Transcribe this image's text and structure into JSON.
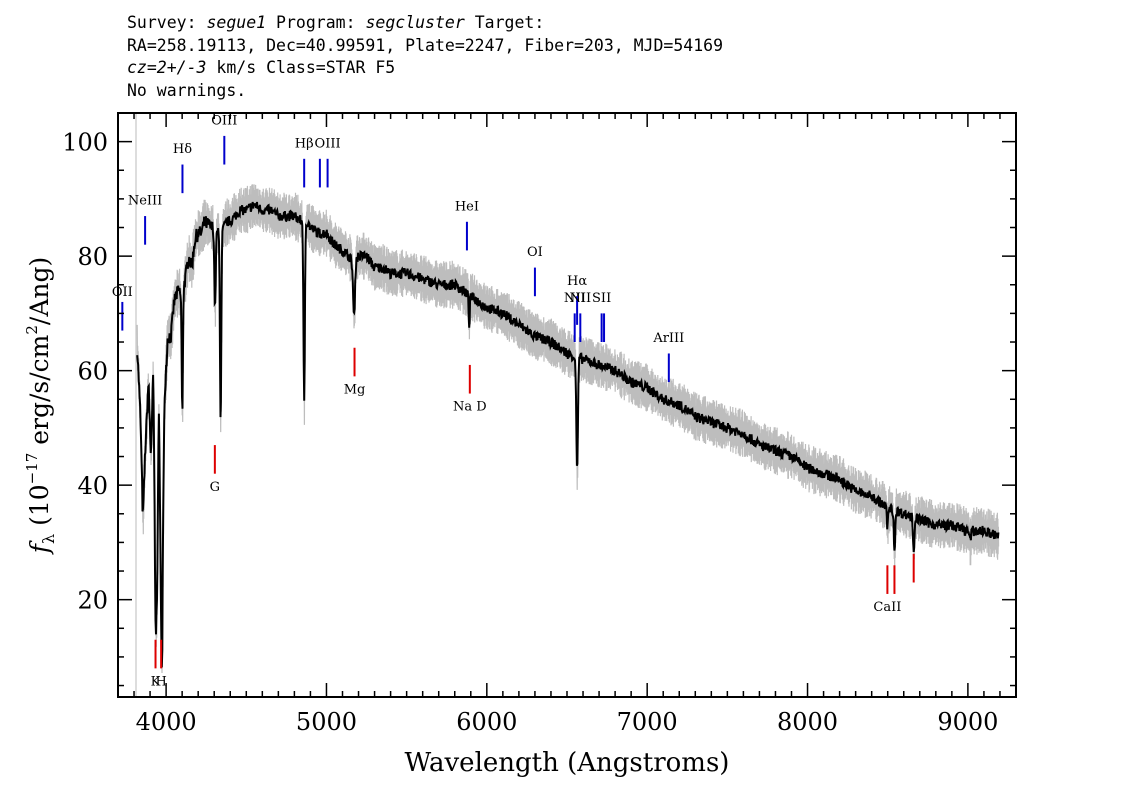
{
  "header": {
    "survey_label": "Survey:",
    "survey": "segue1",
    "program_label": "Program:",
    "program": "segcluster",
    "target_label": "Target:",
    "line2": "RA=258.19113, Dec=40.99591, Plate=2247, Fiber=203, MJD=54169",
    "cz": "cz=2+/-3",
    "cz_rest": " km/s Class=STAR F5",
    "warnings": "No warnings."
  },
  "chart_data": {
    "type": "line",
    "title": "",
    "xlabel": "Wavelength (Angstroms)",
    "ylabel": "f_λ (10^-17 erg/s/cm^2/Ang)",
    "xlim": [
      3700,
      9300
    ],
    "ylim": [
      3,
      105
    ],
    "xticks": [
      4000,
      5000,
      6000,
      7000,
      8000,
      9000
    ],
    "yticks": [
      20,
      40,
      60,
      80,
      100
    ],
    "grid": false,
    "colors": {
      "flux": "#000000",
      "error_band": "#bdbdbd",
      "emission": "#0000cc",
      "absorption": "#dd0000"
    },
    "continuum": [
      [
        3820,
        64
      ],
      [
        3840,
        52
      ],
      [
        3855,
        34
      ],
      [
        3870,
        46
      ],
      [
        3890,
        58
      ],
      [
        3905,
        45
      ],
      [
        3920,
        60
      ],
      [
        3935,
        30
      ],
      [
        3945,
        28
      ],
      [
        3955,
        55
      ],
      [
        3965,
        48
      ],
      [
        3975,
        20
      ],
      [
        3990,
        55
      ],
      [
        4010,
        66
      ],
      [
        4030,
        66
      ],
      [
        4050,
        72
      ],
      [
        4060,
        73
      ],
      [
        4080,
        74
      ],
      [
        4095,
        73
      ],
      [
        4120,
        76
      ],
      [
        4140,
        80
      ],
      [
        4160,
        78
      ],
      [
        4180,
        83
      ],
      [
        4200,
        84
      ],
      [
        4220,
        84
      ],
      [
        4240,
        86
      ],
      [
        4280,
        85
      ],
      [
        4300,
        85
      ],
      [
        4320,
        84
      ],
      [
        4360,
        85
      ],
      [
        4380,
        86
      ],
      [
        4400,
        86
      ],
      [
        4430,
        87
      ],
      [
        4460,
        88
      ],
      [
        4500,
        88
      ],
      [
        4550,
        89
      ],
      [
        4600,
        88
      ],
      [
        4650,
        88
      ],
      [
        4700,
        87
      ],
      [
        4750,
        87
      ],
      [
        4800,
        87
      ],
      [
        4850,
        86
      ],
      [
        4880,
        86
      ],
      [
        4900,
        85
      ],
      [
        4950,
        84
      ],
      [
        5000,
        84
      ],
      [
        5050,
        82
      ],
      [
        5100,
        81
      ],
      [
        5140,
        80
      ],
      [
        5160,
        79
      ],
      [
        5200,
        80
      ],
      [
        5250,
        80
      ],
      [
        5300,
        78
      ],
      [
        5350,
        78
      ],
      [
        5400,
        77
      ],
      [
        5500,
        77
      ],
      [
        5600,
        76
      ],
      [
        5700,
        75
      ],
      [
        5800,
        75
      ],
      [
        5900,
        73
      ],
      [
        6000,
        71
      ],
      [
        6100,
        70
      ],
      [
        6200,
        68
      ],
      [
        6300,
        66
      ],
      [
        6400,
        65
      ],
      [
        6500,
        63
      ],
      [
        6600,
        62
      ],
      [
        6700,
        61
      ],
      [
        6800,
        60
      ],
      [
        6900,
        58
      ],
      [
        7000,
        57
      ],
      [
        7100,
        55
      ],
      [
        7200,
        54
      ],
      [
        7300,
        52
      ],
      [
        7400,
        51
      ],
      [
        7500,
        50
      ],
      [
        7600,
        49
      ],
      [
        7700,
        47
      ],
      [
        7800,
        46
      ],
      [
        7900,
        45
      ],
      [
        8000,
        43
      ],
      [
        8100,
        42
      ],
      [
        8200,
        41
      ],
      [
        8300,
        39
      ],
      [
        8400,
        38
      ],
      [
        8500,
        36
      ],
      [
        8600,
        35
      ],
      [
        8700,
        34
      ],
      [
        8800,
        33
      ],
      [
        8900,
        33
      ],
      [
        9000,
        32
      ],
      [
        9100,
        32
      ],
      [
        9190,
        31
      ]
    ],
    "absorption_dips": [
      {
        "x": 3935,
        "depth": 16,
        "width": 9
      },
      {
        "x": 3968,
        "depth": 22,
        "width": 9
      },
      {
        "x": 4101,
        "depth": 22,
        "width": 5
      },
      {
        "x": 4305,
        "depth": 14,
        "width": 6
      },
      {
        "x": 4340,
        "depth": 33,
        "width": 6
      },
      {
        "x": 4861,
        "depth": 32,
        "width": 6
      },
      {
        "x": 5172,
        "depth": 10,
        "width": 8
      },
      {
        "x": 5890,
        "depth": 5,
        "width": 5
      },
      {
        "x": 6563,
        "depth": 20,
        "width": 7
      },
      {
        "x": 8498,
        "depth": 3,
        "width": 6
      },
      {
        "x": 8542,
        "depth": 7,
        "width": 6
      },
      {
        "x": 8662,
        "depth": 6,
        "width": 6
      },
      {
        "x": 9015,
        "depth": 2,
        "width": 6
      }
    ],
    "emission_lines": [
      {
        "label": "OII",
        "x": 3727,
        "y_low": 67,
        "y_high": 72,
        "label_y": 73
      },
      {
        "label": "NeIII",
        "x": 3869,
        "y_low": 82,
        "y_high": 87,
        "label_y": 89
      },
      {
        "label": "Hδ",
        "x": 4102,
        "y_low": 91,
        "y_high": 96,
        "label_y": 98
      },
      {
        "label": "OIII",
        "x": 4363,
        "y_low": 96,
        "y_high": 101,
        "label_y": 103
      },
      {
        "label": "Hβ",
        "x": 4861,
        "y_low": 92,
        "y_high": 97,
        "label_y": 99
      },
      {
        "label": "OIII",
        "x": 4959,
        "y_low": 92,
        "y_high": 97,
        "label_y": null
      },
      {
        "label": "OIII",
        "x": 5007,
        "y_low": 92,
        "y_high": 97,
        "label_y": 99
      },
      {
        "label": "HeI",
        "x": 5876,
        "y_low": 81,
        "y_high": 86,
        "label_y": 88
      },
      {
        "label": "OI",
        "x": 6300,
        "y_low": 73,
        "y_high": 78,
        "label_y": 80
      },
      {
        "label": "NII",
        "x": 6548,
        "y_low": 65,
        "y_high": 70,
        "label_y": 72
      },
      {
        "label": "Hα",
        "x": 6563,
        "y_low": 68,
        "y_high": 73,
        "label_y": 75
      },
      {
        "label": "NII",
        "x": 6583,
        "y_low": 65,
        "y_high": 70,
        "label_y": 72
      },
      {
        "label": "SII",
        "x": 6716,
        "y_low": 65,
        "y_high": 70,
        "label_y": 72
      },
      {
        "label": "SII",
        "x": 6731,
        "y_low": 65,
        "y_high": 70,
        "label_y": null
      },
      {
        "label": "ArIII",
        "x": 7135,
        "y_low": 58,
        "y_high": 63,
        "label_y": 65
      }
    ],
    "absorption_lines": [
      {
        "label": "K",
        "x": 3934,
        "y_low": 8,
        "y_high": 13,
        "label_y": 5
      },
      {
        "label": "H",
        "x": 3969,
        "y_low": 8,
        "y_high": 13,
        "label_y": 5
      },
      {
        "label": "G",
        "x": 4304,
        "y_low": 42,
        "y_high": 47,
        "label_y": 39
      },
      {
        "label": "Mg",
        "x": 5175,
        "y_low": 59,
        "y_high": 64,
        "label_y": 56
      },
      {
        "label": "Na D",
        "x": 5894,
        "y_low": 56,
        "y_high": 61,
        "label_y": 53
      },
      {
        "label": "CaII",
        "x": 8498,
        "y_low": 21,
        "y_high": 26,
        "label_y": 18
      },
      {
        "label": "CaII",
        "x": 8542,
        "y_low": 21,
        "y_high": 26,
        "label_y": null
      },
      {
        "label": "CaII",
        "x": 8662,
        "y_low": 23,
        "y_high": 28,
        "label_y": null
      }
    ]
  }
}
